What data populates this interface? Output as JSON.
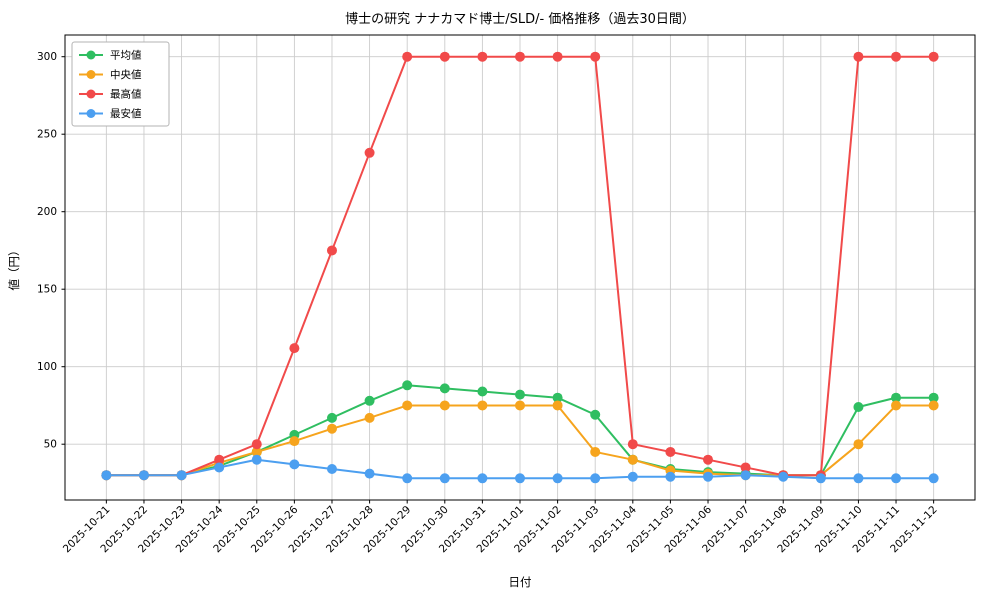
{
  "chart_data": {
    "type": "line",
    "title": "博士の研究 ナナカマド博士/SLD/- 価格推移（過去30日間）",
    "xlabel": "日付",
    "ylabel": "値（円）",
    "categories": [
      "2025-10-21",
      "2025-10-22",
      "2025-10-23",
      "2025-10-24",
      "2025-10-25",
      "2025-10-26",
      "2025-10-27",
      "2025-10-28",
      "2025-10-29",
      "2025-10-30",
      "2025-10-31",
      "2025-11-01",
      "2025-11-02",
      "2025-11-03",
      "2025-11-04",
      "2025-11-05",
      "2025-11-06",
      "2025-11-07",
      "2025-11-08",
      "2025-11-09",
      "2025-11-10",
      "2025-11-11",
      "2025-11-12"
    ],
    "series": [
      {
        "name": "平均値",
        "color": "#2fbe61",
        "values": [
          30,
          30,
          30,
          36,
          45,
          56,
          67,
          78,
          88,
          86,
          84,
          82,
          80,
          69,
          40,
          34,
          32,
          31,
          30,
          30,
          74,
          80,
          80
        ]
      },
      {
        "name": "中央値",
        "color": "#f6a41d",
        "values": [
          30,
          30,
          30,
          38,
          45,
          52,
          60,
          67,
          75,
          75,
          75,
          75,
          75,
          45,
          40,
          33,
          31,
          30,
          30,
          30,
          50,
          75,
          75
        ]
      },
      {
        "name": "最高値",
        "color": "#f14a4a",
        "values": [
          30,
          30,
          30,
          40,
          50,
          112,
          175,
          238,
          300,
          300,
          300,
          300,
          300,
          300,
          50,
          45,
          40,
          35,
          30,
          30,
          300,
          300,
          300
        ]
      },
      {
        "name": "最安値",
        "color": "#4c9ff0",
        "values": [
          30,
          30,
          30,
          35,
          40,
          37,
          34,
          31,
          28,
          28,
          28,
          28,
          28,
          28,
          29,
          29,
          29,
          30,
          29,
          28,
          28,
          28,
          28
        ]
      }
    ],
    "ylim": [
      14,
      314
    ],
    "yticks": [
      50,
      100,
      150,
      200,
      250,
      300
    ],
    "grid": true,
    "legend_position": "upper left",
    "grid_color": "#cccccc",
    "border_color": "#000000"
  }
}
